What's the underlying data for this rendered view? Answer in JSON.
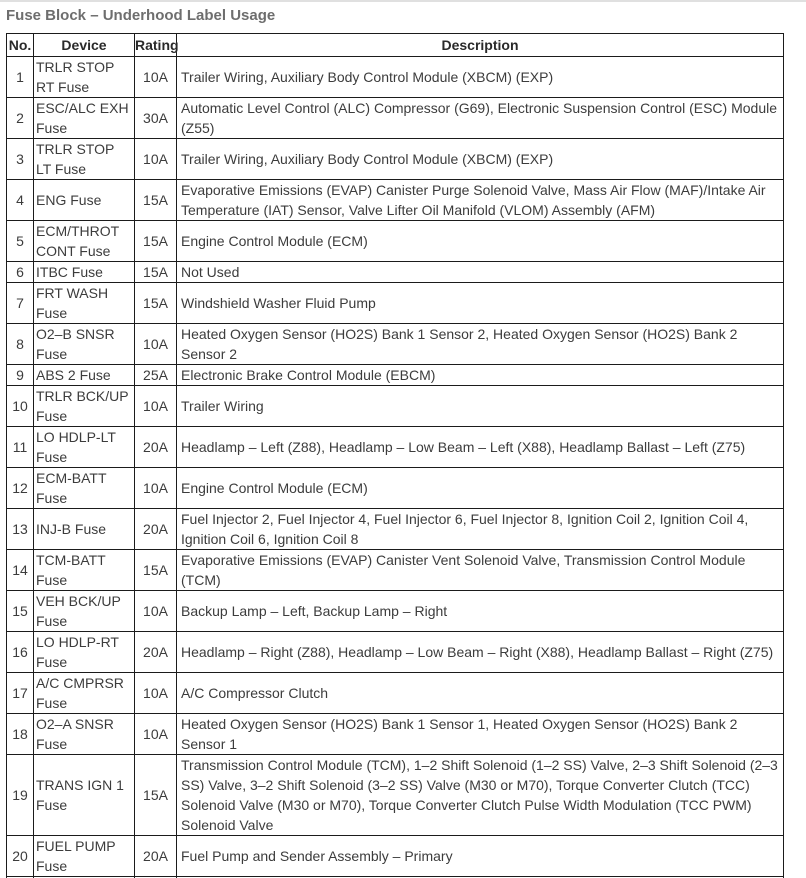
{
  "colors": {
    "title": "#6e6e6e",
    "header_text": "#2a2a2a",
    "text": "#3c3c3c",
    "border": "#1b1b1b",
    "top_rule": "#e0e0e0",
    "background": "#ffffff"
  },
  "page": {
    "title": "Fuse Block – Underhood Label Usage"
  },
  "table": {
    "columns": [
      "No.",
      "Device",
      "Rating",
      "Description"
    ],
    "rows": [
      {
        "no": "1",
        "device": "TRLR STOP RT Fuse",
        "rating": "10A",
        "description": "Trailer Wiring, Auxiliary Body Control Module (XBCM) (EXP)"
      },
      {
        "no": "2",
        "device": "ESC/ALC EXH Fuse",
        "rating": "30A",
        "description": "Automatic Level Control (ALC) Compressor (G69), Electronic Suspension Control (ESC) Module (Z55)"
      },
      {
        "no": "3",
        "device": "TRLR STOP LT Fuse",
        "rating": "10A",
        "description": "Trailer Wiring, Auxiliary Body Control Module (XBCM) (EXP)"
      },
      {
        "no": "4",
        "device": "ENG Fuse",
        "rating": "15A",
        "description": "Evaporative Emissions (EVAP) Canister Purge Solenoid Valve, Mass Air Flow (MAF)/Intake Air Temperature (IAT) Sensor, Valve Lifter Oil Manifold (VLOM) Assembly (AFM)"
      },
      {
        "no": "5",
        "device": "ECM/THROT CONT Fuse",
        "rating": "15A",
        "description": "Engine Control Module (ECM)"
      },
      {
        "no": "6",
        "device": "ITBC Fuse",
        "rating": "15A",
        "description": "Not Used"
      },
      {
        "no": "7",
        "device": "FRT WASH Fuse",
        "rating": "15A",
        "description": "Windshield Washer Fluid Pump"
      },
      {
        "no": "8",
        "device": "O2–B SNSR Fuse",
        "rating": "10A",
        "description": "Heated Oxygen Sensor (HO2S) Bank 1 Sensor 2, Heated Oxygen Sensor (HO2S) Bank 2 Sensor 2"
      },
      {
        "no": "9",
        "device": "ABS 2 Fuse",
        "rating": "25A",
        "description": "Electronic Brake Control Module (EBCM)"
      },
      {
        "no": "10",
        "device": "TRLR BCK/UP Fuse",
        "rating": "10A",
        "description": "Trailer Wiring"
      },
      {
        "no": "11",
        "device": "LO HDLP-LT Fuse",
        "rating": "20A",
        "description": "Headlamp – Left (Z88), Headlamp – Low Beam – Left (X88), Headlamp Ballast – Left (Z75)"
      },
      {
        "no": "12",
        "device": "ECM-BATT Fuse",
        "rating": "10A",
        "description": "Engine Control Module (ECM)"
      },
      {
        "no": "13",
        "device": "INJ-B Fuse",
        "rating": "20A",
        "description": "Fuel Injector 2, Fuel Injector 4, Fuel Injector 6, Fuel Injector 8, Ignition Coil 2, Ignition Coil 4, Ignition Coil 6, Ignition Coil 8"
      },
      {
        "no": "14",
        "device": "TCM-BATT Fuse",
        "rating": "15A",
        "description": "Evaporative Emissions (EVAP) Canister Vent Solenoid Valve, Transmission Control Module (TCM)"
      },
      {
        "no": "15",
        "device": "VEH BCK/UP Fuse",
        "rating": "10A",
        "description": "Backup Lamp – Left, Backup Lamp – Right"
      },
      {
        "no": "16",
        "device": "LO HDLP-RT Fuse",
        "rating": "20A",
        "description": "Headlamp – Right (Z88), Headlamp – Low Beam – Right (X88), Headlamp Ballast – Right (Z75)"
      },
      {
        "no": "17",
        "device": "A/C CMPRSR Fuse",
        "rating": "10A",
        "description": "A/C Compressor Clutch"
      },
      {
        "no": "18",
        "device": "O2–A SNSR Fuse",
        "rating": "10A",
        "description": "Heated Oxygen Sensor (HO2S) Bank 1 Sensor 1, Heated Oxygen Sensor (HO2S) Bank 2 Sensor 1"
      },
      {
        "no": "19",
        "device": "TRANS IGN 1 Fuse",
        "rating": "15A",
        "description": "Transmission Control Module (TCM), 1–2 Shift Solenoid (1–2 SS) Valve, 2–3 Shift Solenoid (2–3 SS) Valve, 3–2 Shift Solenoid (3–2 SS) Valve (M30 or M70), Torque Converter Clutch (TCC) Solenoid Valve (M30 or M70), Torque Converter Clutch Pulse Width Modulation (TCC PWM) Solenoid Valve"
      },
      {
        "no": "20",
        "device": "FUEL PUMP Fuse",
        "rating": "20A",
        "description": "Fuel Pump and Sender Assembly – Primary"
      }
    ]
  }
}
